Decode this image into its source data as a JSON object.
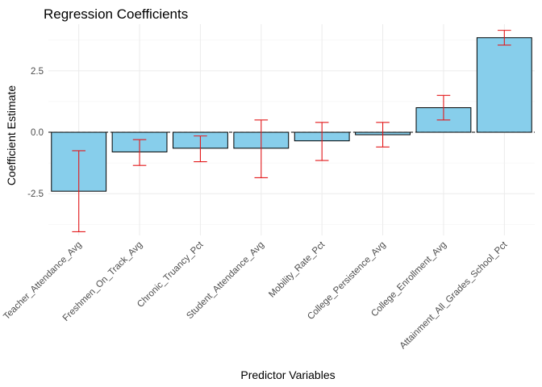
{
  "chart_data": {
    "type": "bar",
    "title": "Regression Coefficients",
    "xlabel": "Predictor Variables",
    "ylabel": "Coefficient Estimate",
    "categories": [
      "Teacher_Attendance_Avg",
      "Freshmen_On_Track_Avg",
      "Chronic_Truancy_Pct",
      "Student_Attendance_Avg",
      "Mobility_Rate_Pct",
      "College_Persistence_Avg",
      "College_Enrollment_Avg",
      "Attainment_All_Grades_School_Pct"
    ],
    "values": [
      -2.4,
      -0.8,
      -0.65,
      -0.65,
      -0.35,
      -0.1,
      1.0,
      3.85
    ],
    "error_lower": [
      -4.05,
      -1.35,
      -1.2,
      -1.85,
      -1.15,
      -0.6,
      0.5,
      3.55
    ],
    "error_upper": [
      -0.75,
      -0.3,
      -0.15,
      0.5,
      0.4,
      0.4,
      1.5,
      4.15
    ],
    "ylim": [
      -4.2,
      4.4
    ],
    "yticks": [
      -2.5,
      0.0,
      2.5
    ],
    "ytick_labels": [
      "-2.5",
      "0.0",
      "2.5"
    ],
    "grid": true,
    "legend": "none",
    "reference_line": 0,
    "colors": {
      "bar_fill": "#87ceeb",
      "bar_outline": "#000000",
      "error_bar": "#e31a1c"
    }
  }
}
